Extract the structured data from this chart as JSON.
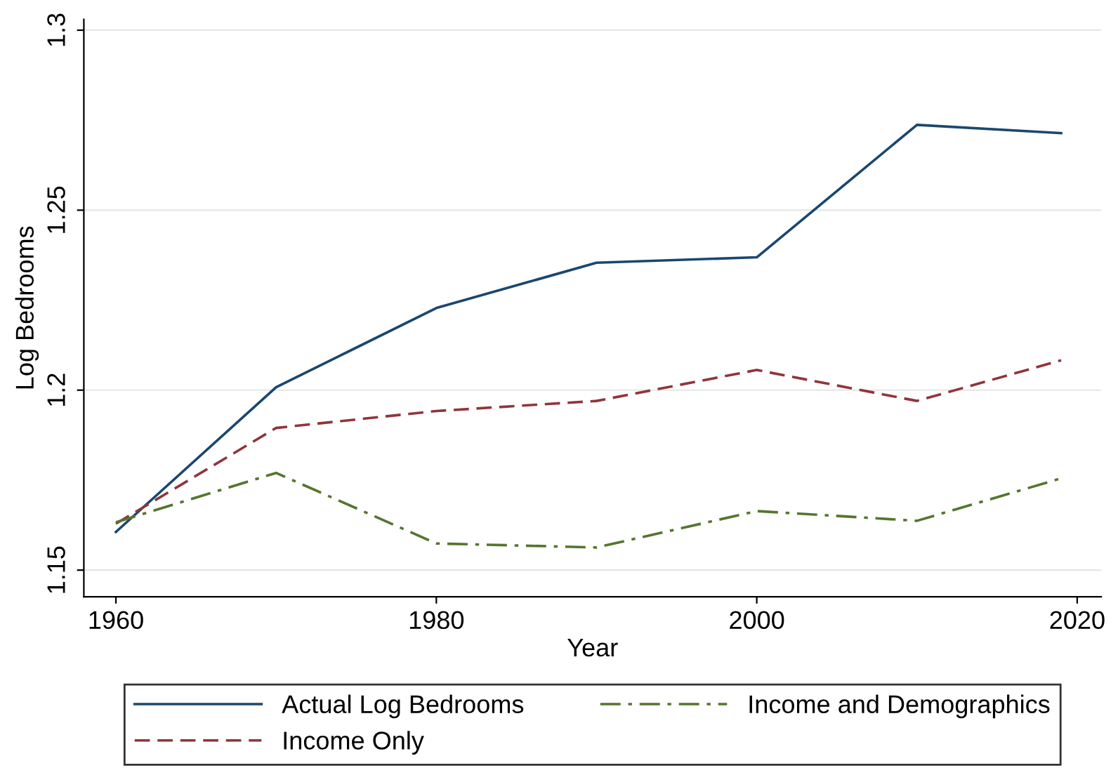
{
  "chart_data": {
    "type": "line",
    "xlabel": "Year",
    "ylabel": "Log Bedrooms",
    "x": [
      1960,
      1970,
      1980,
      1990,
      2000,
      2010,
      2019
    ],
    "series": [
      {
        "name": "Actual Log Bedrooms",
        "color": "#1a476f",
        "line_style": "solid",
        "values": [
          1.1606,
          1.2008,
          1.2228,
          1.2354,
          1.2369,
          1.2737,
          1.2714
        ]
      },
      {
        "name": "Income Only",
        "color": "#90353b",
        "line_style": "dashed",
        "values": [
          1.1629,
          1.1895,
          1.1942,
          1.197,
          1.2056,
          1.197,
          1.2083
        ]
      },
      {
        "name": "Income and Demographics",
        "color": "#55752f",
        "line_style": "dashdot",
        "values": [
          1.1633,
          1.177,
          1.1574,
          1.1563,
          1.1664,
          1.1637,
          1.1755
        ]
      }
    ],
    "xlim": [
      1958,
      2021.5
    ],
    "ylim": [
      1.1426,
      1.303
    ],
    "xticks": [
      1960,
      1980,
      2000,
      2020
    ],
    "yticks": [
      1.15,
      1.2,
      1.25,
      1.3
    ],
    "grid": "y",
    "legend": "bottom",
    "marker": "none"
  }
}
